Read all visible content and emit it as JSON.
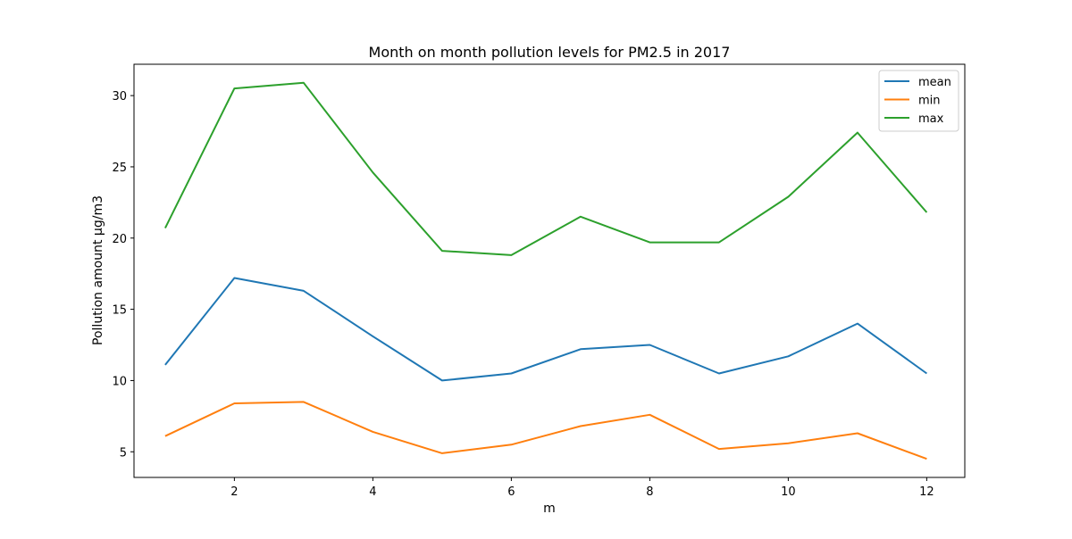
{
  "chart_data": {
    "type": "line",
    "title": "Month on month pollution levels for PM2.5 in 2017",
    "xlabel": "m",
    "ylabel": "Pollution amount μg/m3",
    "xlim": [
      0.55,
      12.55
    ],
    "ylim": [
      3.2,
      32.2
    ],
    "xticks": [
      2,
      4,
      6,
      8,
      10,
      12
    ],
    "yticks": [
      5,
      10,
      15,
      20,
      25,
      30
    ],
    "grid": false,
    "legend_position": "top-right",
    "x": [
      1,
      2,
      3,
      4,
      5,
      6,
      7,
      8,
      9,
      10,
      11,
      12
    ],
    "series": [
      {
        "name": "mean",
        "color": "#1f77b4",
        "values": [
          11.1,
          17.2,
          16.3,
          13.1,
          10.0,
          10.5,
          12.2,
          12.5,
          10.5,
          11.7,
          14.0,
          10.5
        ]
      },
      {
        "name": "min",
        "color": "#ff7f0e",
        "values": [
          6.1,
          8.4,
          8.5,
          6.4,
          4.9,
          5.5,
          6.8,
          7.6,
          5.2,
          5.6,
          6.3,
          4.5
        ]
      },
      {
        "name": "max",
        "color": "#2ca02c",
        "values": [
          20.7,
          30.5,
          30.9,
          24.6,
          19.1,
          18.8,
          21.5,
          19.7,
          19.7,
          22.9,
          27.4,
          21.8
        ]
      }
    ]
  }
}
